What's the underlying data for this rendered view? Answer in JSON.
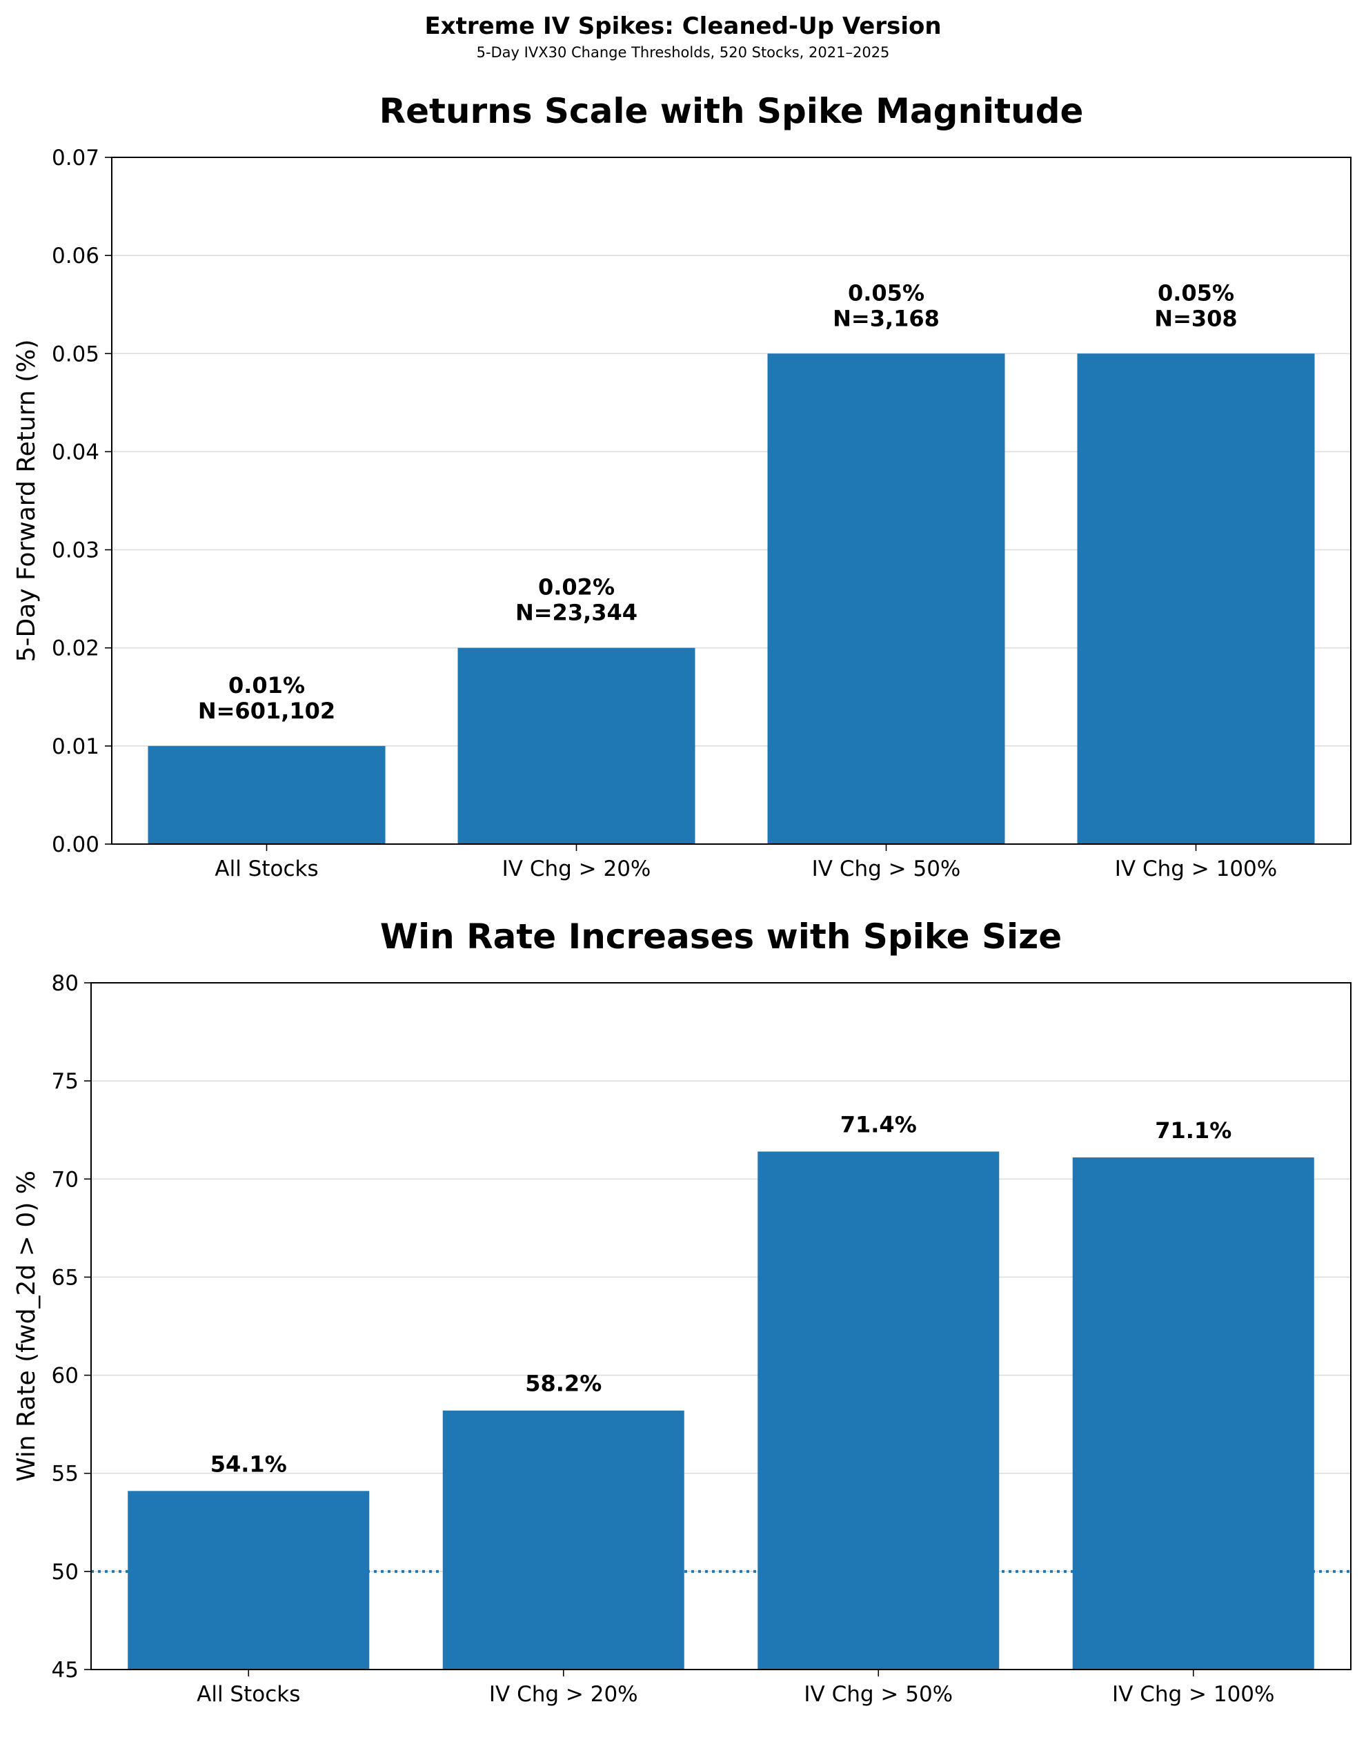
{
  "header": {
    "title": "Extreme IV Spikes: Cleaned-Up Version",
    "subtitle": "5-Day IVX30 Change Thresholds, 520 Stocks, 2021–2025"
  },
  "chart_data": [
    {
      "type": "bar",
      "title": "Returns Scale with Spike Magnitude",
      "xlabel": "",
      "ylabel": "5-Day Forward Return (%)",
      "categories": [
        "All Stocks",
        "IV Chg > 20%",
        "IV Chg > 50%",
        "IV Chg > 100%"
      ],
      "values": [
        0.01,
        0.02,
        0.05,
        0.05
      ],
      "value_labels": [
        "0.01%",
        "0.02%",
        "0.05%",
        "0.05%"
      ],
      "n_labels": [
        "N=601,102",
        "N=23,344",
        "N=3,168",
        "N=308"
      ],
      "ylim": [
        0,
        0.07
      ],
      "yticks": [
        0,
        0.01,
        0.02,
        0.03,
        0.04,
        0.05,
        0.06,
        0.07
      ],
      "ytick_labels": [
        "0.00",
        "0.01",
        "0.02",
        "0.03",
        "0.04",
        "0.05",
        "0.06",
        "0.07"
      ],
      "grid": "y",
      "bar_color": "#1f77b4"
    },
    {
      "type": "bar",
      "title": "Win Rate Increases with Spike Size",
      "xlabel": "",
      "ylabel": "Win Rate (fwd_2d > 0) %",
      "categories": [
        "All Stocks",
        "IV Chg > 20%",
        "IV Chg > 50%",
        "IV Chg > 100%"
      ],
      "values": [
        54.1,
        58.2,
        71.4,
        71.1
      ],
      "value_labels": [
        "54.1%",
        "58.2%",
        "71.4%",
        "71.1%"
      ],
      "ylim": [
        45,
        80
      ],
      "yticks": [
        45,
        50,
        55,
        60,
        65,
        70,
        75,
        80
      ],
      "ytick_labels": [
        "45",
        "50",
        "55",
        "60",
        "65",
        "70",
        "75",
        "80"
      ],
      "reference_line": 50,
      "grid": "y",
      "bar_color": "#1f77b4"
    }
  ]
}
